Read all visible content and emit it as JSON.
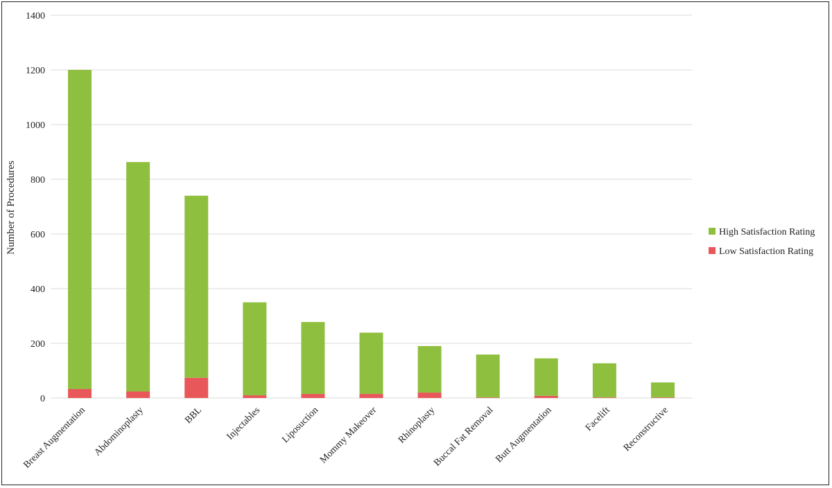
{
  "chart_data": {
    "type": "bar",
    "stacked": true,
    "title": "",
    "xlabel": "",
    "ylabel": "Number of Procedures",
    "ylim": [
      0,
      1400
    ],
    "yticks": [
      0,
      200,
      400,
      600,
      800,
      1000,
      1200,
      1400
    ],
    "grid": true,
    "legend_position": "right",
    "categories": [
      "Breast Augmentation",
      "Abdominoplasty",
      "BBL",
      "Injectables",
      "Liposuction",
      "Mommy Makeover",
      "Rhinoplasty",
      "Buccal Fat Removal",
      "Butt Augmentation",
      "Facelift",
      "Reconstructive"
    ],
    "series": [
      {
        "name": "Low Satisfaction Rating",
        "color": "#e8575a",
        "values": [
          33,
          24,
          74,
          10,
          15,
          15,
          20,
          2,
          8,
          2,
          2
        ]
      },
      {
        "name": "High Satisfaction Rating",
        "color": "#8fbf3f",
        "values": [
          1167,
          839,
          666,
          340,
          263,
          224,
          170,
          157,
          137,
          125,
          55
        ]
      }
    ],
    "legend": [
      {
        "label": "High Satisfaction Rating",
        "color": "#8fbf3f"
      },
      {
        "label": "Low Satisfaction Rating",
        "color": "#e8575a"
      }
    ]
  }
}
